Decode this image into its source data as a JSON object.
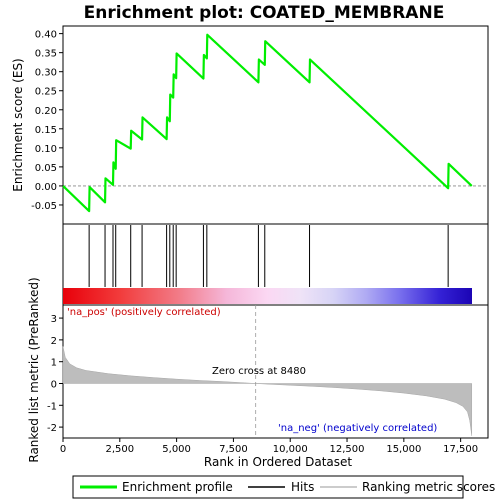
{
  "chart_data": {
    "type": "line",
    "title": "Enrichment plot: COATED_MEMBRANE",
    "top_panel": {
      "ylabel": "Enrichment score (ES)",
      "ylim": [
        -0.1,
        0.42
      ],
      "yticks": [
        -0.05,
        0.0,
        0.05,
        0.1,
        0.15,
        0.2,
        0.25,
        0.3,
        0.35,
        0.4
      ],
      "ytick_labels": [
        "-0.05",
        "0.00",
        "0.05",
        "0.10",
        "0.15",
        "0.20",
        "0.25",
        "0.30",
        "0.35",
        "0.40"
      ],
      "series": [
        {
          "name": "Enrichment profile",
          "color": "#00ee00",
          "points": [
            [
              0,
              0.0
            ],
            [
              1150,
              -0.066
            ],
            [
              1170,
              -0.003
            ],
            [
              1850,
              -0.043
            ],
            [
              1870,
              0.02
            ],
            [
              2200,
              0.003
            ],
            [
              2220,
              0.062
            ],
            [
              2320,
              0.045
            ],
            [
              2340,
              0.12
            ],
            [
              2980,
              0.098
            ],
            [
              3000,
              0.145
            ],
            [
              3480,
              0.122
            ],
            [
              3500,
              0.18
            ],
            [
              4560,
              0.123
            ],
            [
              4580,
              0.18
            ],
            [
              4700,
              0.17
            ],
            [
              4720,
              0.24
            ],
            [
              4850,
              0.232
            ],
            [
              4870,
              0.293
            ],
            [
              4980,
              0.283
            ],
            [
              5000,
              0.348
            ],
            [
              6180,
              0.282
            ],
            [
              6200,
              0.344
            ],
            [
              6330,
              0.335
            ],
            [
              6350,
              0.397
            ],
            [
              8600,
              0.272
            ],
            [
              8620,
              0.332
            ],
            [
              8880,
              0.318
            ],
            [
              8900,
              0.38
            ],
            [
              10850,
              0.272
            ],
            [
              10870,
              0.332
            ],
            [
              16950,
              -0.006
            ],
            [
              16970,
              0.058
            ],
            [
              17990,
              0.0
            ]
          ]
        }
      ]
    },
    "hits_panel": {
      "hit_positions": [
        1150,
        1850,
        2200,
        2320,
        2980,
        3480,
        4560,
        4700,
        4850,
        4980,
        6180,
        6330,
        8600,
        8880,
        10850,
        16950
      ]
    },
    "bottom_panel": {
      "ylabel": "Ranked list metric (PreRanked)",
      "xlabel": "Rank in Ordered Dataset",
      "ylim": [
        -2.5,
        3.6
      ],
      "yticks": [
        -2,
        -1,
        0,
        1,
        2,
        3
      ],
      "ytick_labels": [
        "-2",
        "-1",
        "0",
        "1",
        "2",
        "3"
      ],
      "xlim": [
        0,
        18000
      ],
      "xticks": [
        0,
        2500,
        5000,
        7500,
        10000,
        12500,
        15000,
        17500
      ],
      "xtick_labels": [
        "0",
        "2,500",
        "5,000",
        "7,500",
        "10,000",
        "12,500",
        "15,000",
        "17,500"
      ],
      "metric_profile": [
        [
          0,
          1.7
        ],
        [
          100,
          1.2
        ],
        [
          300,
          0.9
        ],
        [
          600,
          0.72
        ],
        [
          1000,
          0.6
        ],
        [
          2000,
          0.45
        ],
        [
          3000,
          0.35
        ],
        [
          4000,
          0.27
        ],
        [
          5000,
          0.2
        ],
        [
          6000,
          0.14
        ],
        [
          7000,
          0.09
        ],
        [
          8000,
          0.03
        ],
        [
          8480,
          0.0
        ],
        [
          9000,
          -0.03
        ],
        [
          10000,
          -0.08
        ],
        [
          11000,
          -0.13
        ],
        [
          12000,
          -0.19
        ],
        [
          13000,
          -0.26
        ],
        [
          14000,
          -0.34
        ],
        [
          15000,
          -0.44
        ],
        [
          16000,
          -0.57
        ],
        [
          16800,
          -0.72
        ],
        [
          17300,
          -0.88
        ],
        [
          17600,
          -1.05
        ],
        [
          17800,
          -1.3
        ],
        [
          17900,
          -1.7
        ],
        [
          17990,
          -2.4
        ]
      ],
      "zero_cross_rank": 8480,
      "zero_cross_label": "Zero cross at 8480",
      "pos_label": "'na_pos' (positively correlated)",
      "neg_label": "'na_neg' (negatively correlated)"
    },
    "legend": {
      "placement": "bottom",
      "items": [
        {
          "label": "Enrichment profile",
          "color": "#00ee00"
        },
        {
          "label": "Hits",
          "color": "#000000"
        },
        {
          "label": "Ranking metric scores",
          "color": "#bbbbbb"
        }
      ]
    }
  }
}
